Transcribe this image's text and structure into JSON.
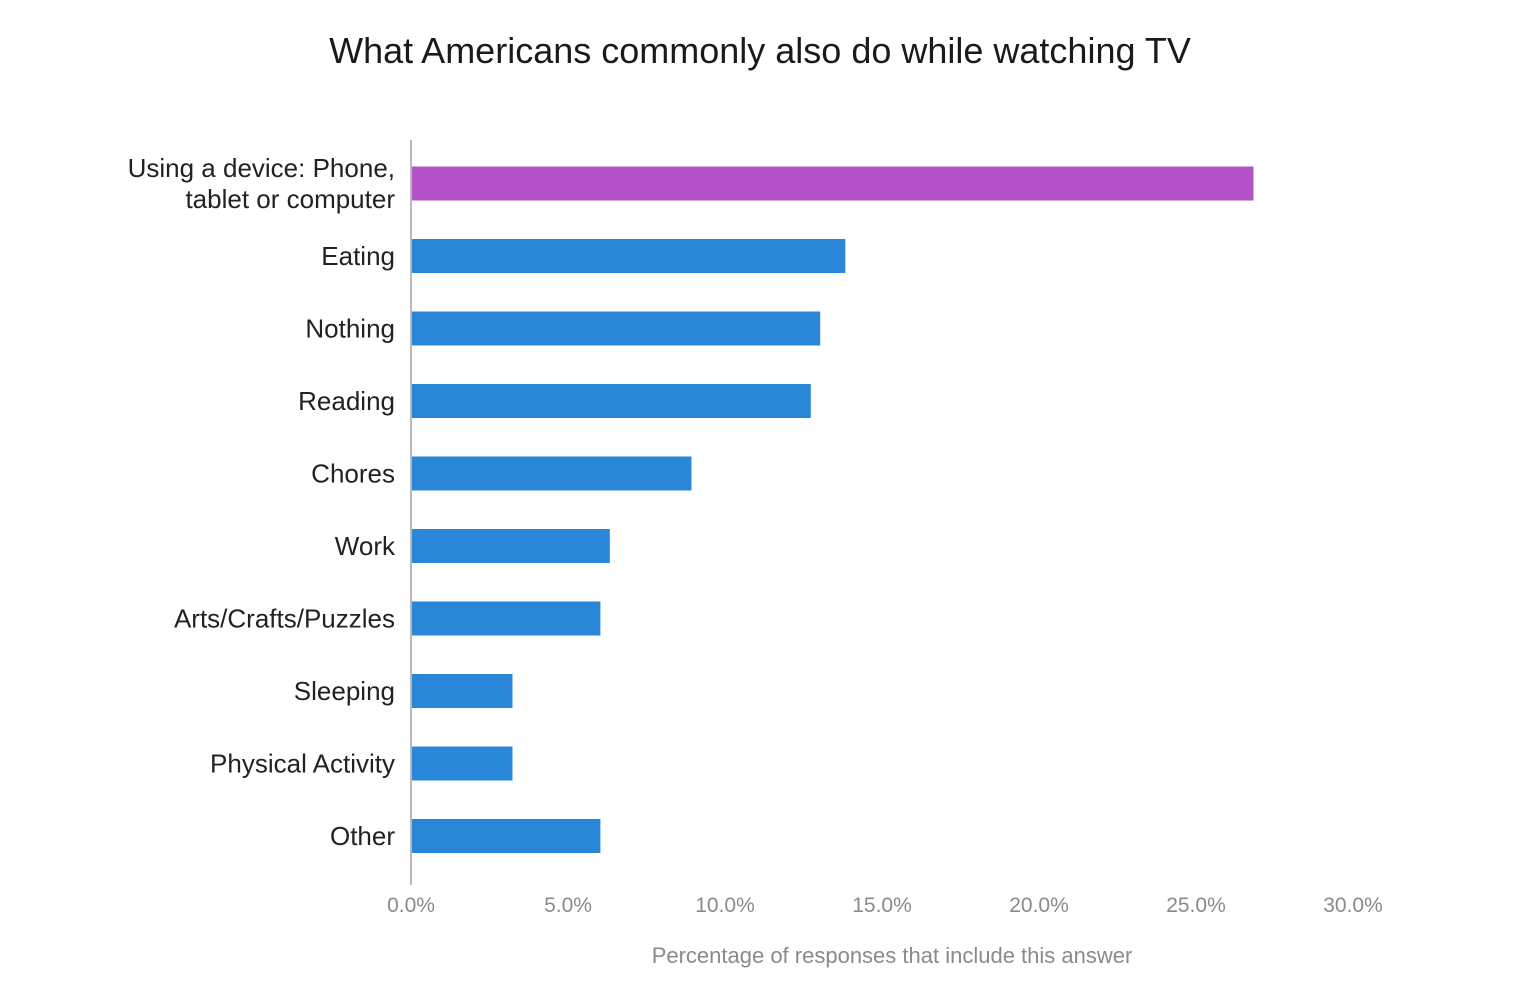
{
  "chart_data": {
    "type": "bar",
    "orientation": "horizontal",
    "title": "What Americans commonly also do while watching TV",
    "xlabel": "Percentage of responses that include this answer",
    "ylabel": "",
    "categories": [
      [
        "Using a device: Phone,",
        "tablet or computer"
      ],
      [
        "Eating"
      ],
      [
        "Nothing"
      ],
      [
        "Reading"
      ],
      [
        "Chores"
      ],
      [
        "Work"
      ],
      [
        "Arts/Crafts/Puzzles"
      ],
      [
        "Sleeping"
      ],
      [
        "Physical Activity"
      ],
      [
        "Other"
      ]
    ],
    "values": [
      26.8,
      13.8,
      13.0,
      12.7,
      8.9,
      6.3,
      6.0,
      3.2,
      3.2,
      6.0
    ],
    "bar_colors": [
      "#b352c9",
      "#2a86d6",
      "#2a86d6",
      "#2a86d6",
      "#2a86d6",
      "#2a86d6",
      "#2a86d6",
      "#2a86d6",
      "#2a86d6",
      "#2a86d6"
    ],
    "xlim": [
      0,
      30
    ],
    "xticks": [
      0,
      5,
      10,
      15,
      20,
      25,
      30
    ],
    "xtick_labels": [
      "0.0%",
      "5.0%",
      "10.0%",
      "15.0%",
      "20.0%",
      "25.0%",
      "30.0%"
    ],
    "grid": false,
    "legend": "none"
  }
}
